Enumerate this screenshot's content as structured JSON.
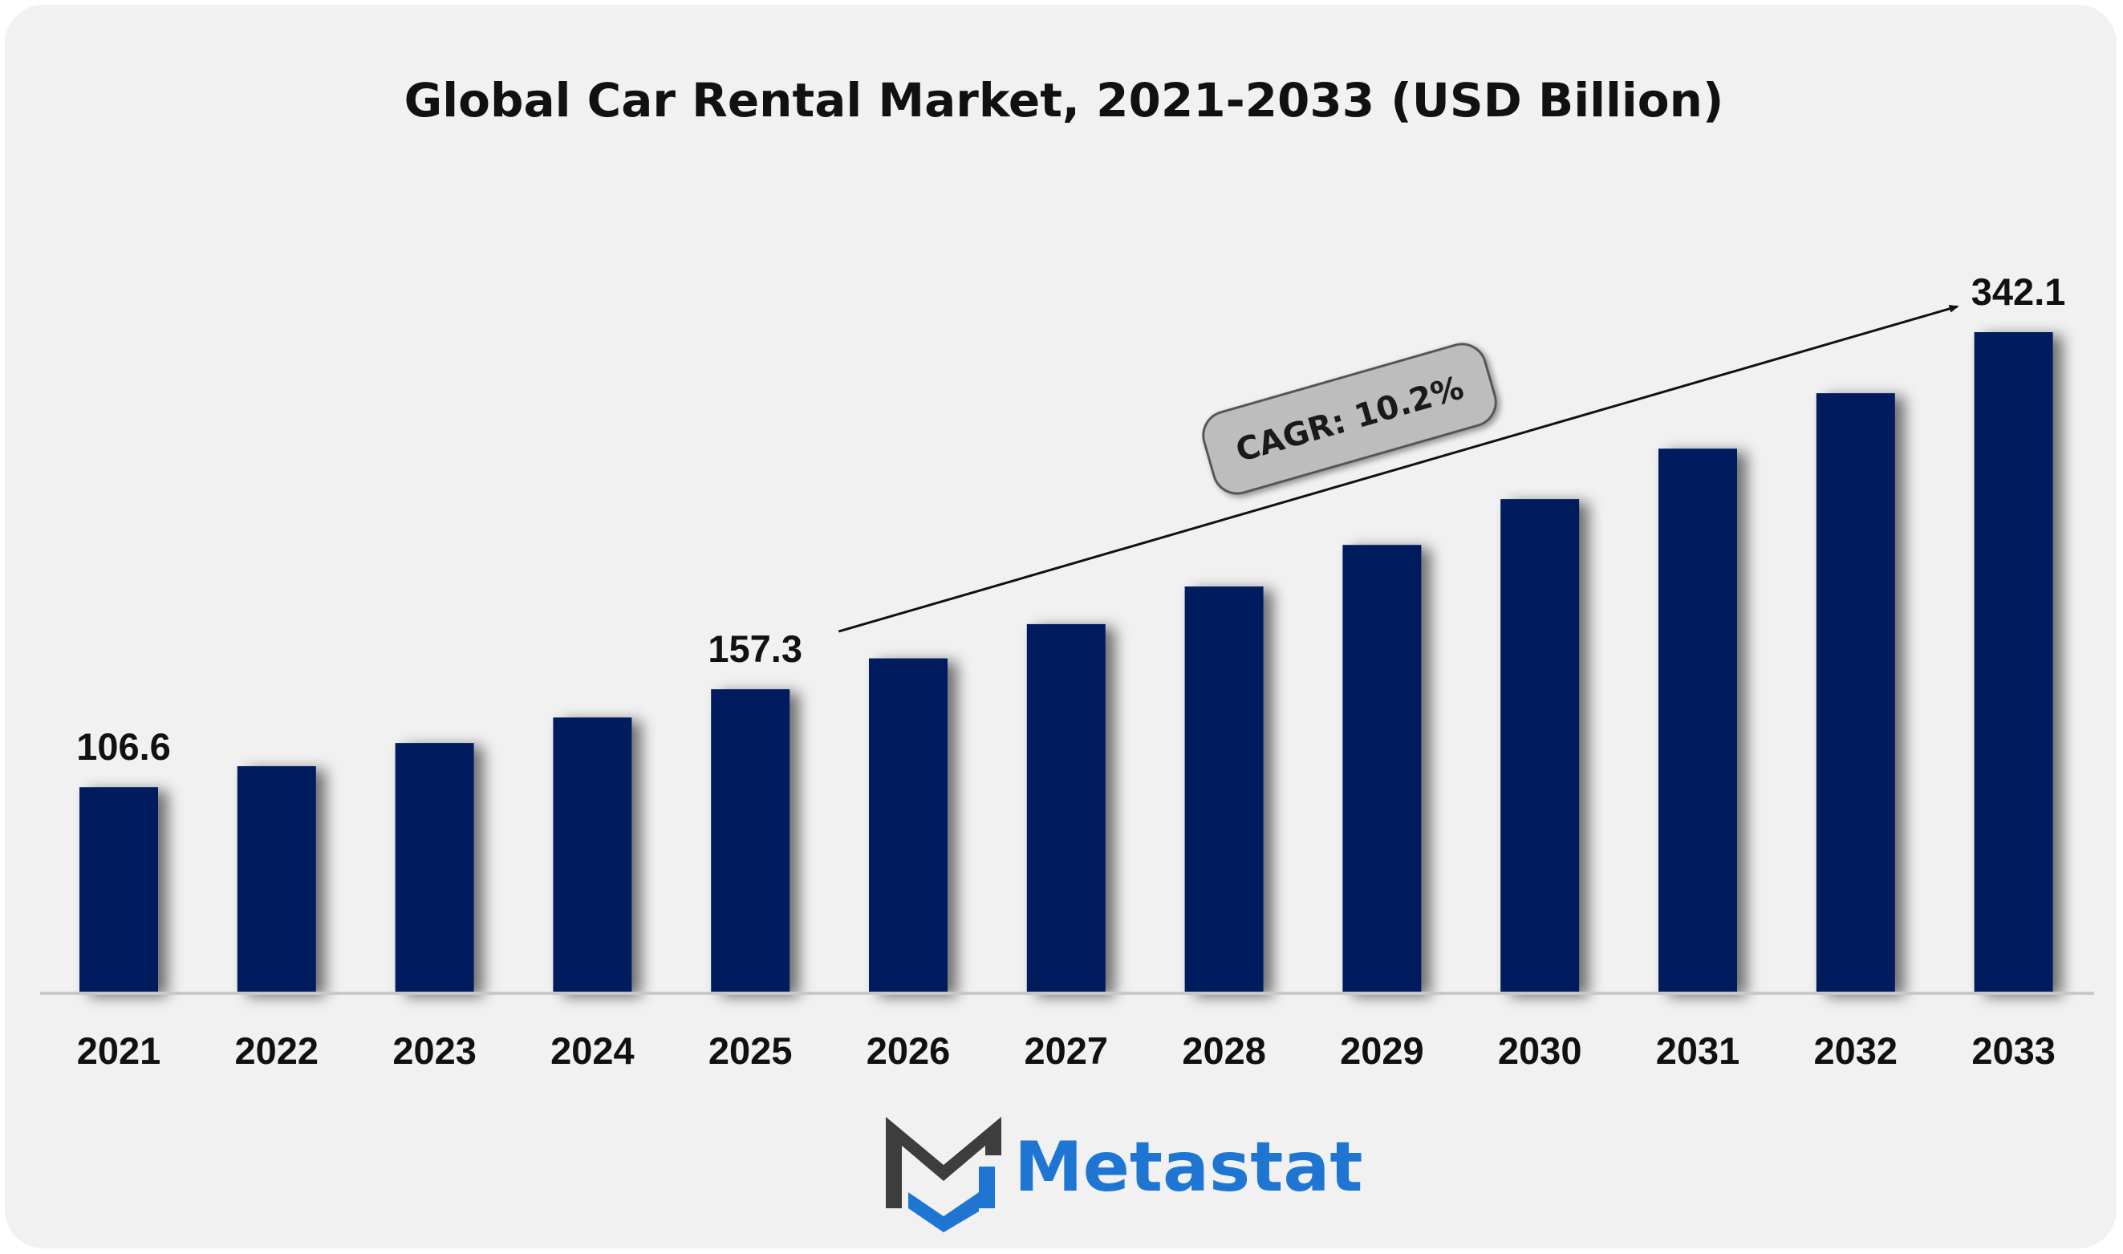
{
  "chart_data": {
    "type": "bar",
    "title": "Global Car Rental Market, 2021-2033 (USD Billion)",
    "xlabel": "",
    "ylabel": "",
    "categories": [
      "2021",
      "2022",
      "2023",
      "2024",
      "2025",
      "2026",
      "2027",
      "2028",
      "2029",
      "2030",
      "2031",
      "2032",
      "2033"
    ],
    "values": [
      106.6,
      117.5,
      129.5,
      142.7,
      157.3,
      173.3,
      191.0,
      210.5,
      232.0,
      255.7,
      281.8,
      310.5,
      342.1
    ],
    "data_labels": [
      {
        "category": "2021",
        "text": "106.6"
      },
      {
        "category": "2025",
        "text": "157.3"
      },
      {
        "category": "2033",
        "text": "342.1"
      }
    ],
    "annotation": {
      "text": "CAGR: 10.2%",
      "from": "2025",
      "to": "2033"
    },
    "ylim": [
      0,
      342.1
    ],
    "grid": false,
    "legend": "none",
    "bar_color": "#031f5e"
  },
  "brand": {
    "name": "Metastat",
    "text_color": "#1f76d2",
    "mark_dark_color": "#3d3d3d",
    "mark_blue_color": "#1f76d2"
  },
  "colors": {
    "background": "#f1f1f1",
    "axis": "#c8c8c8",
    "cagr_pill": "#bdbdbd"
  }
}
